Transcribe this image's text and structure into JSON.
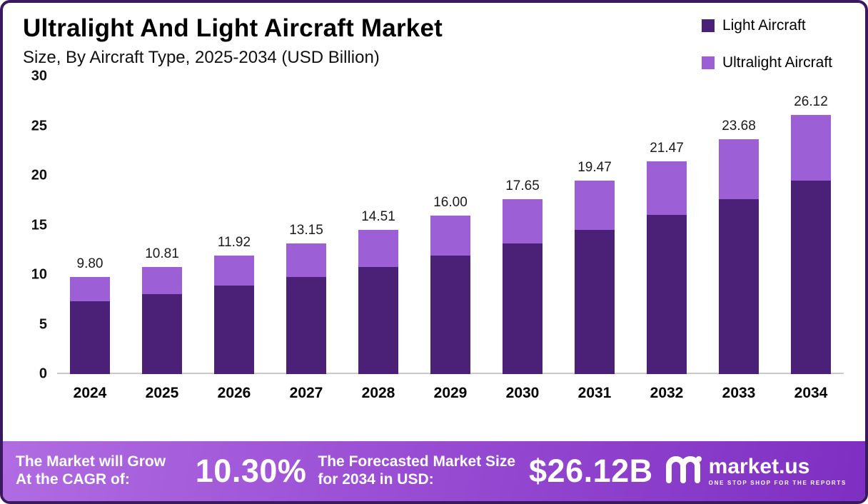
{
  "title": "Ultralight And Light Aircraft Market",
  "subtitle": "Size, By Aircraft Type, 2025-2034 (USD Billion)",
  "legend": [
    {
      "label": "Light Aircraft",
      "color": "#4b2178"
    },
    {
      "label": "Ultralight Aircraft",
      "color": "#9c5fd6"
    }
  ],
  "chart_data": {
    "type": "bar",
    "stacked": true,
    "title": "Ultralight And Light Aircraft Market Size, By Aircraft Type, 2025-2034 (USD Billion)",
    "xlabel": "",
    "ylabel": "",
    "ylim": [
      0,
      30
    ],
    "yticks": [
      30,
      25,
      20,
      15,
      10,
      5,
      0
    ],
    "grid": false,
    "legend_position": "top-right",
    "categories": [
      "2024",
      "2025",
      "2026",
      "2027",
      "2028",
      "2029",
      "2030",
      "2031",
      "2032",
      "2033",
      "2034"
    ],
    "series": [
      {
        "name": "Light Aircraft",
        "color": "#4b2178",
        "values": [
          7.31,
          8.06,
          8.89,
          9.81,
          10.82,
          11.93,
          13.16,
          14.52,
          16.01,
          17.66,
          19.48
        ]
      },
      {
        "name": "Ultralight Aircraft",
        "color": "#9c5fd6",
        "values": [
          2.49,
          2.75,
          3.03,
          3.34,
          3.69,
          4.07,
          4.49,
          4.95,
          5.46,
          6.02,
          6.64
        ]
      }
    ],
    "totals": [
      9.8,
      10.81,
      11.92,
      13.15,
      14.51,
      16.0,
      17.65,
      19.47,
      21.47,
      23.68,
      26.12
    ],
    "total_labels": [
      "9.80",
      "10.81",
      "11.92",
      "13.15",
      "14.51",
      "16.00",
      "17.65",
      "19.47",
      "21.47",
      "23.68",
      "26.12"
    ]
  },
  "banner": {
    "cagr_label": "The Market will Grow At the CAGR of:",
    "cagr_value": "10.30%",
    "forecast_label": "The Forecasted Market Size for 2034 in USD:",
    "forecast_value": "$26.12B",
    "brand": "market.us",
    "brand_tagline": "ONE STOP SHOP FOR THE REPORTS"
  }
}
